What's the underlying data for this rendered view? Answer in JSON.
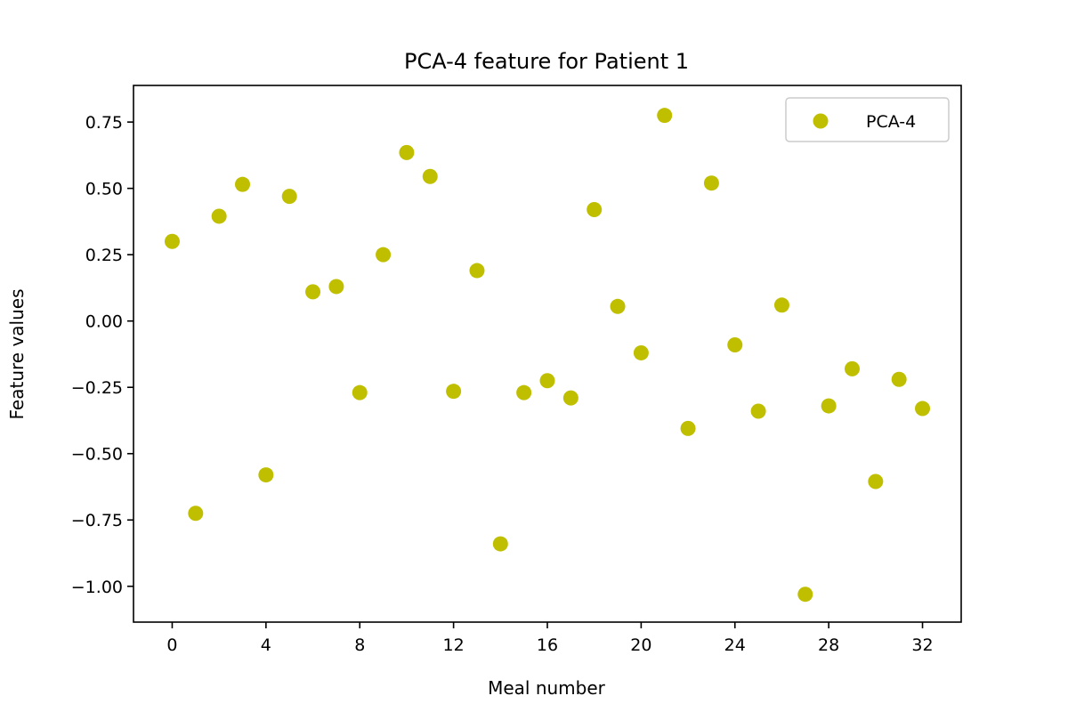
{
  "chart_data": {
    "type": "scatter",
    "title": "PCA-4 feature for Patient 1",
    "xlabel": "Meal number",
    "ylabel": "Feature values",
    "xlim": [
      -1.65,
      33.65
    ],
    "ylim": [
      -1.135,
      0.888
    ],
    "xticks": [
      0,
      4,
      8,
      12,
      16,
      20,
      24,
      28,
      32
    ],
    "xtick_labels": [
      "0",
      "4",
      "8",
      "12",
      "16",
      "20",
      "24",
      "28",
      "32"
    ],
    "yticks": [
      0.75,
      0.5,
      0.25,
      0.0,
      -0.25,
      -0.5,
      -0.75,
      -1.0
    ],
    "ytick_labels": [
      "0.75",
      "0.50",
      "0.25",
      "0.00",
      "−0.25",
      "−0.50",
      "−0.75",
      "−1.00"
    ],
    "grid": false,
    "legend_position": "top-right",
    "series": [
      {
        "name": "PCA-4",
        "color": "#bfbf00",
        "points": [
          {
            "x": 0,
            "y": 0.3
          },
          {
            "x": 1,
            "y": -0.725
          },
          {
            "x": 2,
            "y": 0.395
          },
          {
            "x": 3,
            "y": 0.515
          },
          {
            "x": 4,
            "y": -0.58
          },
          {
            "x": 5,
            "y": 0.47
          },
          {
            "x": 6,
            "y": 0.11
          },
          {
            "x": 7,
            "y": 0.13
          },
          {
            "x": 8,
            "y": -0.27
          },
          {
            "x": 9,
            "y": 0.25
          },
          {
            "x": 10,
            "y": 0.635
          },
          {
            "x": 11,
            "y": 0.545
          },
          {
            "x": 12,
            "y": -0.265
          },
          {
            "x": 13,
            "y": 0.19
          },
          {
            "x": 14,
            "y": -0.84
          },
          {
            "x": 15,
            "y": -0.27
          },
          {
            "x": 16,
            "y": -0.225
          },
          {
            "x": 17,
            "y": -0.29
          },
          {
            "x": 18,
            "y": 0.42
          },
          {
            "x": 19,
            "y": 0.055
          },
          {
            "x": 20,
            "y": -0.12
          },
          {
            "x": 21,
            "y": 0.775
          },
          {
            "x": 22,
            "y": -0.405
          },
          {
            "x": 23,
            "y": 0.52
          },
          {
            "x": 24,
            "y": -0.09
          },
          {
            "x": 25,
            "y": -0.34
          },
          {
            "x": 26,
            "y": 0.06
          },
          {
            "x": 27,
            "y": -1.03
          },
          {
            "x": 28,
            "y": -0.32
          },
          {
            "x": 29,
            "y": -0.18
          },
          {
            "x": 30,
            "y": -0.605
          },
          {
            "x": 31,
            "y": -0.22
          },
          {
            "x": 32,
            "y": -0.33
          }
        ]
      }
    ]
  }
}
